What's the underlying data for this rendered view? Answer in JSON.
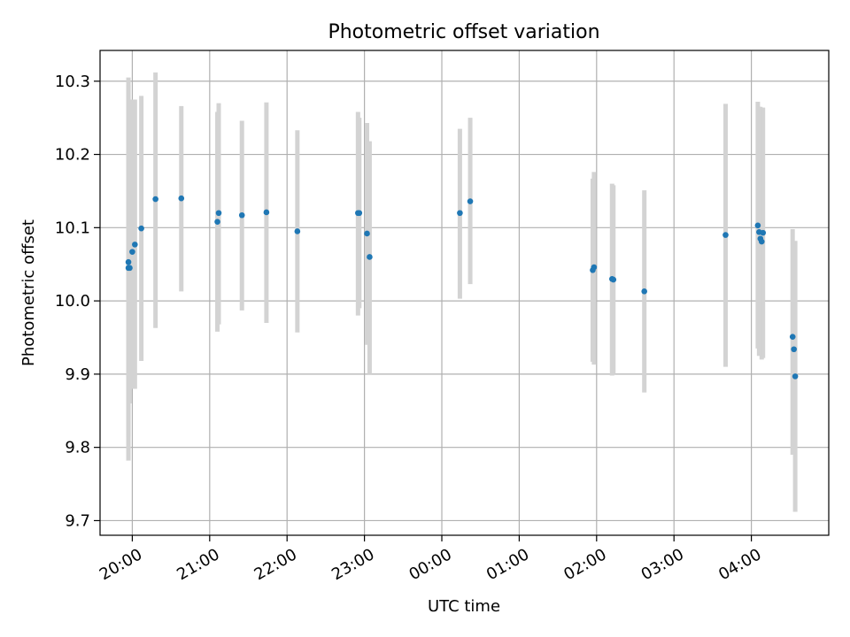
{
  "chart_data": {
    "type": "scatter",
    "title": "Photometric offset variation",
    "xlabel": "UTC time",
    "ylabel": "Photometric offset",
    "grid": true,
    "legend": "none",
    "x_range": [
      "19:35",
      "05:00"
    ],
    "ylim": [
      9.68,
      10.342
    ],
    "x_ticks": [
      "20:00",
      "21:00",
      "22:00",
      "23:00",
      "00:00",
      "01:00",
      "02:00",
      "03:00",
      "04:00"
    ],
    "y_ticks": [
      "9.7",
      "9.8",
      "9.9",
      "10.0",
      "10.1",
      "10.2",
      "10.3"
    ],
    "colors": {
      "point": "#1f77b4",
      "errorbar": "#d3d3d3",
      "grid": "#b0b0b0"
    },
    "points": [
      {
        "x": "19:57",
        "y": 10.045,
        "err_low": 9.782,
        "err_high": 10.305
      },
      {
        "x": "19:57",
        "y": 10.053,
        "err_low": 9.815,
        "err_high": 10.295
      },
      {
        "x": "19:58",
        "y": 10.045,
        "err_low": 9.86,
        "err_high": 10.27
      },
      {
        "x": "20:00",
        "y": 10.067,
        "err_low": 9.88,
        "err_high": 10.275
      },
      {
        "x": "20:02",
        "y": 10.077,
        "err_low": 9.88,
        "err_high": 10.275
      },
      {
        "x": "20:07",
        "y": 10.099,
        "err_low": 9.918,
        "err_high": 10.28
      },
      {
        "x": "20:18",
        "y": 10.139,
        "err_low": 9.963,
        "err_high": 10.312
      },
      {
        "x": "20:38",
        "y": 10.14,
        "err_low": 10.013,
        "err_high": 10.266
      },
      {
        "x": "21:06",
        "y": 10.108,
        "err_low": 9.958,
        "err_high": 10.258
      },
      {
        "x": "21:07",
        "y": 10.12,
        "err_low": 9.968,
        "err_high": 10.27
      },
      {
        "x": "21:25",
        "y": 10.117,
        "err_low": 9.987,
        "err_high": 10.246
      },
      {
        "x": "21:44",
        "y": 10.121,
        "err_low": 9.97,
        "err_high": 10.271
      },
      {
        "x": "22:08",
        "y": 10.095,
        "err_low": 9.957,
        "err_high": 10.233
      },
      {
        "x": "22:55",
        "y": 10.12,
        "err_low": 9.98,
        "err_high": 10.258
      },
      {
        "x": "22:56",
        "y": 10.12,
        "err_low": 9.99,
        "err_high": 10.25
      },
      {
        "x": "23:02",
        "y": 10.092,
        "err_low": 9.94,
        "err_high": 10.243
      },
      {
        "x": "23:04",
        "y": 10.06,
        "err_low": 9.9,
        "err_high": 10.218
      },
      {
        "x": "00:14",
        "y": 10.12,
        "err_low": 10.003,
        "err_high": 10.235
      },
      {
        "x": "00:22",
        "y": 10.136,
        "err_low": 10.023,
        "err_high": 10.25
      },
      {
        "x": "01:57",
        "y": 10.042,
        "err_low": 9.917,
        "err_high": 10.167
      },
      {
        "x": "01:58",
        "y": 10.046,
        "err_low": 9.913,
        "err_high": 10.176
      },
      {
        "x": "02:12",
        "y": 10.03,
        "err_low": 9.898,
        "err_high": 10.16
      },
      {
        "x": "02:13",
        "y": 10.029,
        "err_low": 9.9,
        "err_high": 10.158
      },
      {
        "x": "02:37",
        "y": 10.013,
        "err_low": 9.875,
        "err_high": 10.151
      },
      {
        "x": "03:40",
        "y": 10.09,
        "err_low": 9.91,
        "err_high": 10.269
      },
      {
        "x": "04:05",
        "y": 10.103,
        "err_low": 9.935,
        "err_high": 10.272
      },
      {
        "x": "04:06",
        "y": 10.094,
        "err_low": 9.925,
        "err_high": 10.265
      },
      {
        "x": "04:07",
        "y": 10.085,
        "err_low": 9.93,
        "err_high": 10.265
      },
      {
        "x": "04:08",
        "y": 10.081,
        "err_low": 9.92,
        "err_high": 10.26
      },
      {
        "x": "04:09",
        "y": 10.093,
        "err_low": 9.922,
        "err_high": 10.264
      },
      {
        "x": "04:32",
        "y": 9.951,
        "err_low": 9.79,
        "err_high": 10.098
      },
      {
        "x": "04:33",
        "y": 9.934,
        "err_low": 9.8,
        "err_high": 10.07
      },
      {
        "x": "04:34",
        "y": 9.897,
        "err_low": 9.712,
        "err_high": 10.082
      }
    ]
  }
}
